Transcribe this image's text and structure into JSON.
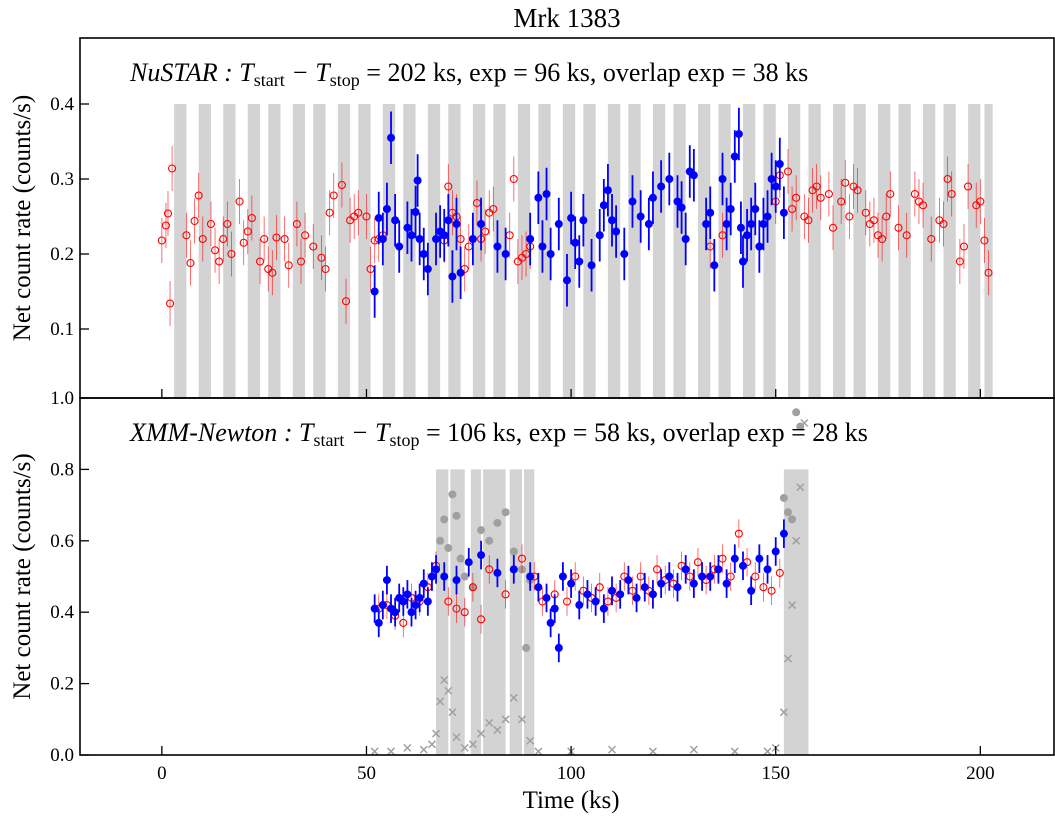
{
  "chart_data": [
    {
      "type": "scatter",
      "title": "Mrk 1383",
      "ylabel": "Net count rate (counts/s)",
      "annotation_parts": [
        "NuSTAR",
        " : T",
        "start",
        " − T",
        "stop",
        " = 202 ks, exp = 96 ks, overlap exp = 38 ks"
      ],
      "xlim": [
        -20,
        218
      ],
      "xticks": [
        0,
        50,
        100,
        150,
        200
      ],
      "xtick_labels": false,
      "ylim": [
        0.008,
        0.488
      ],
      "yticks": [
        0.1,
        0.2,
        0.3,
        0.4
      ],
      "band_color": "#d3d3d3",
      "band_top": 0.4,
      "bands": [
        [
          3,
          6
        ],
        [
          9,
          12
        ],
        [
          15,
          18
        ],
        [
          21,
          24
        ],
        [
          26,
          29
        ],
        [
          32,
          35
        ],
        [
          37,
          40
        ],
        [
          43,
          46
        ],
        [
          48,
          51
        ],
        [
          54,
          57
        ],
        [
          59,
          62
        ],
        [
          65,
          68
        ],
        [
          70,
          73
        ],
        [
          76,
          79
        ],
        [
          81,
          84
        ],
        [
          87,
          90
        ],
        [
          92,
          95
        ],
        [
          98,
          101
        ],
        [
          103,
          106
        ],
        [
          109,
          112
        ],
        [
          114,
          117
        ],
        [
          120,
          123
        ],
        [
          125,
          128
        ],
        [
          131,
          134
        ],
        [
          136,
          139
        ],
        [
          142,
          145
        ],
        [
          147,
          150
        ],
        [
          153,
          156
        ],
        [
          158,
          161
        ],
        [
          164,
          167
        ],
        [
          169,
          172
        ],
        [
          175,
          178
        ],
        [
          180,
          183
        ],
        [
          186,
          189
        ],
        [
          191,
          194
        ],
        [
          197,
          200
        ],
        [
          201,
          203
        ]
      ],
      "series": [
        {
          "color": "#ff0000",
          "marker": "open-circle",
          "error": 0.03,
          "x": [
            0,
            1,
            1.5,
            2,
            2.5,
            6,
            7,
            8,
            9,
            10,
            12,
            13,
            14,
            15,
            16,
            17,
            19,
            20,
            21,
            22,
            24,
            25,
            26,
            27,
            28,
            30,
            31,
            33,
            34,
            35,
            37,
            39,
            40,
            41,
            42,
            44,
            45,
            46,
            47,
            48,
            50,
            51,
            52,
            53,
            54,
            69,
            70,
            71,
            72,
            73,
            74,
            75,
            77,
            78,
            79,
            80,
            81,
            85,
            86,
            87,
            88,
            89,
            90,
            134,
            137,
            150,
            151,
            153,
            154,
            155,
            157,
            158,
            159,
            160,
            161,
            163,
            164,
            166,
            167,
            168,
            169,
            170,
            172,
            173,
            174,
            175,
            176,
            177,
            178,
            180,
            182,
            184,
            185,
            186,
            188,
            190,
            191,
            192,
            193,
            195,
            196,
            197,
            199,
            200,
            201,
            202
          ],
          "values": [
            0.218,
            0.238,
            0.254,
            0.134,
            0.314,
            0.225,
            0.188,
            0.244,
            0.278,
            0.22,
            0.24,
            0.205,
            0.19,
            0.22,
            0.24,
            0.2,
            0.27,
            0.215,
            0.23,
            0.248,
            0.19,
            0.22,
            0.18,
            0.175,
            0.222,
            0.22,
            0.185,
            0.24,
            0.19,
            0.225,
            0.21,
            0.195,
            0.18,
            0.255,
            0.278,
            0.292,
            0.137,
            0.245,
            0.25,
            0.255,
            0.25,
            0.18,
            0.218,
            0.22,
            0.225,
            0.218,
            0.29,
            0.255,
            0.25,
            0.22,
            0.18,
            0.21,
            0.268,
            0.22,
            0.23,
            0.255,
            0.26,
            0.225,
            0.3,
            0.19,
            0.195,
            0.2,
            0.21,
            0.21,
            0.225,
            0.27,
            0.305,
            0.31,
            0.26,
            0.275,
            0.25,
            0.245,
            0.285,
            0.29,
            0.275,
            0.28,
            0.235,
            0.27,
            0.295,
            0.25,
            0.29,
            0.285,
            0.255,
            0.24,
            0.245,
            0.225,
            0.22,
            0.25,
            0.28,
            0.235,
            0.225,
            0.28,
            0.27,
            0.265,
            0.22,
            0.245,
            0.24,
            0.3,
            0.28,
            0.19,
            0.21,
            0.29,
            0.265,
            0.27,
            0.218,
            0.175
          ]
        },
        {
          "color": "#0000ff",
          "marker": "filled-circle",
          "error": 0.035,
          "x": [
            52,
            53,
            54,
            55,
            56,
            57,
            58,
            60,
            61,
            62,
            62.5,
            63,
            64,
            65,
            67,
            68,
            69,
            70,
            71,
            72,
            73,
            76,
            78,
            82,
            84,
            90,
            92,
            93,
            94,
            95,
            97,
            99,
            100,
            101,
            102,
            103,
            105,
            107,
            108,
            109,
            110,
            111,
            113,
            115,
            117,
            119,
            120,
            122,
            124,
            126,
            127,
            128,
            129,
            130,
            133,
            134,
            135,
            137,
            138,
            139,
            140,
            141,
            141.5,
            142,
            143,
            144,
            145,
            146,
            147,
            148,
            149,
            150,
            151,
            152
          ],
          "values": [
            0.15,
            0.248,
            0.22,
            0.26,
            0.355,
            0.245,
            0.21,
            0.235,
            0.225,
            0.256,
            0.298,
            0.22,
            0.2,
            0.18,
            0.22,
            0.23,
            0.225,
            0.245,
            0.17,
            0.24,
            0.175,
            0.22,
            0.24,
            0.21,
            0.2,
            0.22,
            0.275,
            0.21,
            0.28,
            0.2,
            0.24,
            0.165,
            0.248,
            0.215,
            0.19,
            0.245,
            0.185,
            0.225,
            0.265,
            0.285,
            0.245,
            0.23,
            0.2,
            0.27,
            0.25,
            0.24,
            0.275,
            0.29,
            0.3,
            0.27,
            0.262,
            0.22,
            0.31,
            0.305,
            0.24,
            0.255,
            0.185,
            0.3,
            0.24,
            0.26,
            0.33,
            0.36,
            0.235,
            0.19,
            0.225,
            0.24,
            0.26,
            0.21,
            0.24,
            0.25,
            0.3,
            0.29,
            0.32,
            0.255
          ]
        }
      ]
    },
    {
      "type": "scatter",
      "xlabel": "Time (ks)",
      "ylabel": "Net count rate (counts/s)",
      "annotation_parts": [
        "XMM-Newton",
        " : T",
        "start",
        " − T",
        "stop",
        " = 106 ks, exp = 58 ks, overlap exp = 28 ks"
      ],
      "xlim": [
        -20,
        218
      ],
      "xticks": [
        0,
        50,
        100,
        150,
        200
      ],
      "xtick_labels": true,
      "ylim": [
        0,
        1.0
      ],
      "yticks": [
        {
          "value": 0,
          "label": "0.0"
        },
        0.2,
        0.4,
        0.6,
        0.8,
        {
          "value": 1,
          "label": "1.0"
        }
      ],
      "band_color": "#d3d3d3",
      "band_top": 0.8,
      "bands": [
        [
          67,
          70
        ],
        [
          70.5,
          74
        ],
        [
          75.5,
          78
        ],
        [
          78.5,
          84
        ],
        [
          85,
          88
        ],
        [
          88.5,
          91
        ],
        [
          152,
          158
        ]
      ],
      "series": [
        {
          "color": "#a0a0a0",
          "marker": "filled-circle",
          "x": [
            68,
            69,
            70,
            71,
            72,
            73,
            74,
            76,
            78,
            80,
            82,
            84,
            86,
            88,
            89,
            90,
            152,
            153,
            154,
            155,
            156
          ],
          "values": [
            0.6,
            0.66,
            0.58,
            0.73,
            0.67,
            0.55,
            0.5,
            0.47,
            0.63,
            0.6,
            0.65,
            0.68,
            0.57,
            0.52,
            0.3,
            0.49,
            0.72,
            0.68,
            0.66,
            0.96,
            0.92
          ]
        },
        {
          "color": "#a0a0a0",
          "marker": "x",
          "x": [
            52,
            56,
            60,
            64,
            66,
            67,
            68,
            69,
            70,
            71,
            72,
            74,
            76,
            78,
            80,
            82,
            84,
            86,
            88,
            90,
            92,
            100,
            110,
            120,
            130,
            140,
            148,
            150,
            152,
            153,
            154,
            155,
            156,
            157
          ],
          "values": [
            0.01,
            0.01,
            0.02,
            0.015,
            0.03,
            0.06,
            0.15,
            0.21,
            0.18,
            0.12,
            0.05,
            0.02,
            0.03,
            0.06,
            0.09,
            0.07,
            0.1,
            0.16,
            0.1,
            0.04,
            0.01,
            0.01,
            0.015,
            0.01,
            0.015,
            0.01,
            0.01,
            0.02,
            0.12,
            0.27,
            0.42,
            0.6,
            0.75,
            0.93
          ]
        },
        {
          "color": "#ff0000",
          "marker": "open-circle",
          "error": 0.04,
          "x": [
            53,
            55,
            57,
            59,
            61,
            63,
            65,
            67,
            70,
            72,
            74,
            76,
            78,
            80,
            84,
            88,
            91,
            93,
            96,
            99,
            101,
            103,
            105,
            107,
            109,
            111,
            113,
            115,
            117,
            119,
            121,
            123,
            125,
            127,
            129,
            131,
            133,
            135,
            137,
            139,
            141,
            143,
            145,
            147,
            149,
            151
          ],
          "values": [
            0.41,
            0.42,
            0.39,
            0.37,
            0.44,
            0.43,
            0.47,
            0.53,
            0.43,
            0.41,
            0.4,
            0.47,
            0.38,
            0.52,
            0.45,
            0.55,
            0.5,
            0.43,
            0.45,
            0.43,
            0.5,
            0.46,
            0.44,
            0.47,
            0.43,
            0.44,
            0.5,
            0.46,
            0.5,
            0.46,
            0.52,
            0.49,
            0.48,
            0.53,
            0.5,
            0.54,
            0.49,
            0.52,
            0.55,
            0.5,
            0.62,
            0.54,
            0.5,
            0.47,
            0.46,
            0.51
          ]
        },
        {
          "color": "#0000ff",
          "marker": "filled-circle",
          "error": 0.04,
          "x": [
            52,
            53,
            54,
            55,
            56,
            57,
            58,
            59,
            60,
            61,
            62,
            63,
            64,
            65,
            66,
            67,
            69,
            72,
            75,
            78,
            82,
            86,
            90,
            92,
            94,
            95,
            96,
            97,
            98,
            100,
            102,
            104,
            106,
            108,
            110,
            112,
            114,
            116,
            118,
            120,
            122,
            124,
            126,
            128,
            130,
            132,
            134,
            136,
            138,
            140,
            142,
            144,
            146,
            148,
            150,
            152
          ],
          "values": [
            0.41,
            0.37,
            0.42,
            0.49,
            0.41,
            0.4,
            0.44,
            0.43,
            0.45,
            0.4,
            0.42,
            0.44,
            0.48,
            0.43,
            0.5,
            0.52,
            0.5,
            0.49,
            0.54,
            0.56,
            0.51,
            0.52,
            0.5,
            0.47,
            0.44,
            0.37,
            0.41,
            0.3,
            0.5,
            0.48,
            0.42,
            0.45,
            0.43,
            0.41,
            0.46,
            0.45,
            0.49,
            0.44,
            0.47,
            0.45,
            0.48,
            0.5,
            0.47,
            0.52,
            0.48,
            0.5,
            0.5,
            0.52,
            0.48,
            0.55,
            0.53,
            0.46,
            0.55,
            0.52,
            0.57,
            0.62
          ]
        }
      ]
    }
  ]
}
